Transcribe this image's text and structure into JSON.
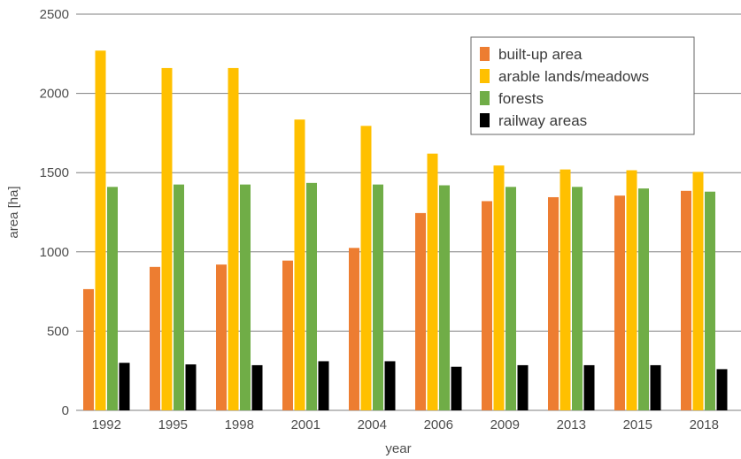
{
  "chart_data": {
    "type": "bar",
    "xlabel": "year",
    "ylabel": "area [ha]",
    "ylim": [
      0,
      2500
    ],
    "yticks": [
      0,
      500,
      1000,
      1500,
      2000,
      2500
    ],
    "grid": "horizontal",
    "legend_position": "top-right",
    "categories": [
      "1992",
      "1995",
      "1998",
      "2001",
      "2004",
      "2006",
      "2009",
      "2013",
      "2015",
      "2018"
    ],
    "series": [
      {
        "name": "built-up area",
        "color": "#ed7d31",
        "values": [
          765,
          905,
          920,
          945,
          1025,
          1245,
          1320,
          1345,
          1355,
          1385
        ]
      },
      {
        "name": "arable lands/meadows",
        "color": "#ffc000",
        "values": [
          2270,
          2160,
          2160,
          1835,
          1795,
          1620,
          1545,
          1520,
          1515,
          1505
        ]
      },
      {
        "name": "forests",
        "color": "#70ad47",
        "values": [
          1410,
          1425,
          1425,
          1435,
          1425,
          1420,
          1410,
          1410,
          1400,
          1380
        ]
      },
      {
        "name": "railway areas",
        "color": "#000000",
        "values": [
          300,
          290,
          285,
          310,
          310,
          275,
          285,
          285,
          285,
          260
        ]
      }
    ]
  }
}
